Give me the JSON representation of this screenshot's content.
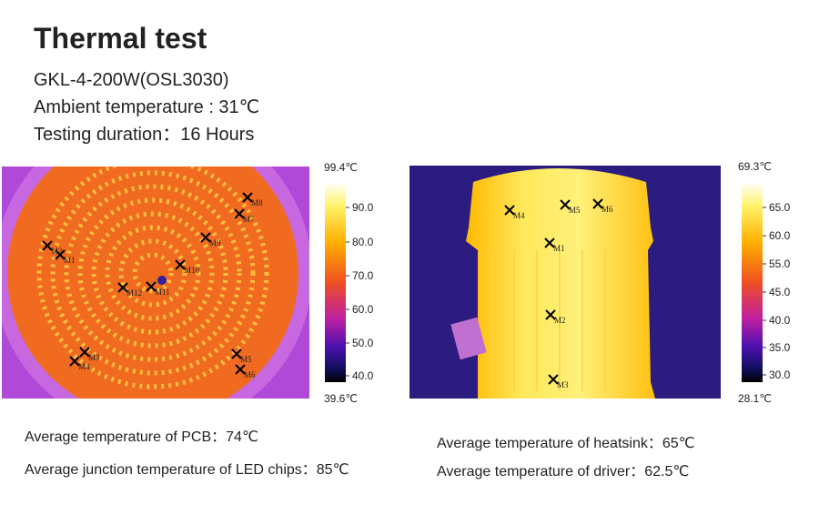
{
  "title": "Thermal test",
  "specs": [
    "GKL-4-200W(OSL3030)",
    "Ambient temperature : 31℃",
    "Testing duration：16 Hours"
  ],
  "left_image": {
    "max": "99.4℃",
    "min": "39.6℃",
    "scale": [
      "90.0",
      "80.0",
      "70.0",
      "60.0",
      "50.0",
      "40.0"
    ],
    "markers": [
      "M1",
      "M2",
      "M3",
      "M4",
      "M5",
      "M6",
      "M7",
      "M8",
      "M9",
      "M10",
      "M11",
      "M12"
    ]
  },
  "right_image": {
    "max": "69.3℃",
    "min": "28.1℃",
    "scale": [
      "65.0",
      "60.0",
      "55.0",
      "45.0",
      "40.0",
      "35.0",
      "30.0"
    ],
    "markers": [
      "M1",
      "M2",
      "M3",
      "M4",
      "M5",
      "M6"
    ]
  },
  "left_notes": [
    "Average temperature of PCB：74℃",
    "Average junction temperature of LED chips：85℃"
  ],
  "right_notes": [
    "Average temperature of heatsink：65℃",
    "Average temperature of driver：62.5℃"
  ]
}
